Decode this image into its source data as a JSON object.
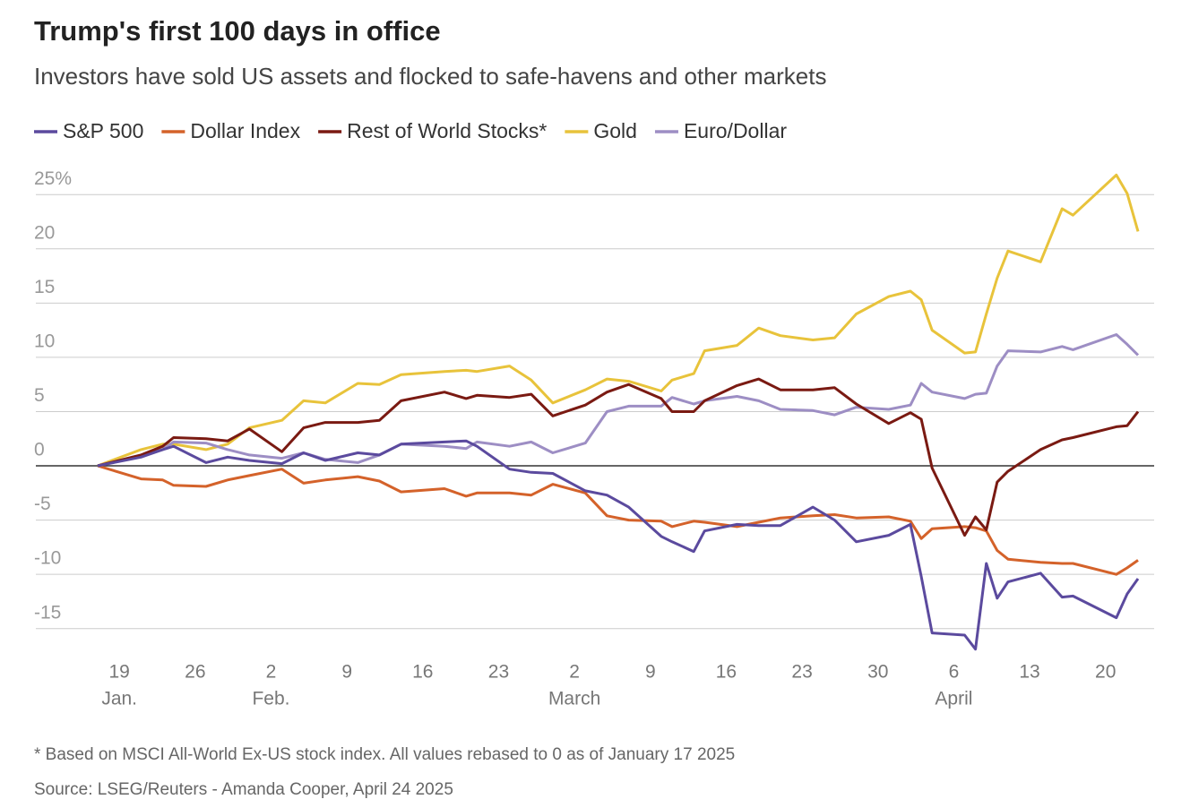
{
  "chart_data": {
    "type": "line",
    "title": "Trump's first 100 days in office",
    "subtitle": "Investors have sold US assets and flocked to safe-havens and other markets",
    "note": "* Based on MSCI All-World Ex-US stock index. All values rebased to 0 as of January 17 2025",
    "source": "Source: LSEG/Reuters - Amanda Cooper, April 24 2025",
    "x": [
      "01-17",
      "01-21",
      "01-23",
      "01-24",
      "01-27",
      "01-29",
      "01-31",
      "02-03",
      "02-05",
      "02-07",
      "02-10",
      "02-12",
      "02-14",
      "02-18",
      "02-20",
      "02-21",
      "02-24",
      "02-26",
      "02-28",
      "03-03",
      "03-05",
      "03-07",
      "03-10",
      "03-11",
      "03-13",
      "03-14",
      "03-17",
      "03-19",
      "03-21",
      "03-24",
      "03-26",
      "03-28",
      "03-31",
      "04-02",
      "04-03",
      "04-04",
      "04-07",
      "04-08",
      "04-09",
      "04-10",
      "04-11",
      "04-14",
      "04-16",
      "04-17",
      "04-21",
      "04-22",
      "04-23"
    ],
    "xlim": [
      "01-17",
      "04-23"
    ],
    "xticks": [
      {
        "value": "01-19",
        "label": "19"
      },
      {
        "value": "01-26",
        "label": "26"
      },
      {
        "value": "02-02",
        "label": "2"
      },
      {
        "value": "02-09",
        "label": "9"
      },
      {
        "value": "02-16",
        "label": "16"
      },
      {
        "value": "02-23",
        "label": "23"
      },
      {
        "value": "03-02",
        "label": "2"
      },
      {
        "value": "03-09",
        "label": "9"
      },
      {
        "value": "03-16",
        "label": "16"
      },
      {
        "value": "03-23",
        "label": "23"
      },
      {
        "value": "03-30",
        "label": "30"
      },
      {
        "value": "04-06",
        "label": "6"
      },
      {
        "value": "04-13",
        "label": "13"
      },
      {
        "value": "04-20",
        "label": "20"
      }
    ],
    "x_month_labels": [
      {
        "value": "01-19",
        "label": "Jan."
      },
      {
        "value": "02-02",
        "label": "Feb."
      },
      {
        "value": "03-02",
        "label": "March"
      },
      {
        "value": "04-06",
        "label": "April"
      }
    ],
    "ylim": [
      -17.5,
      27
    ],
    "yticks": [
      -15,
      -10,
      -5,
      0,
      5,
      10,
      15,
      20,
      {
        "value": 25,
        "label": "25%"
      }
    ],
    "grid": true,
    "legend": "top",
    "series": [
      {
        "name": "S&P 500",
        "color": "#5b4a9e",
        "values": [
          0,
          0.8,
          1.5,
          1.8,
          0.3,
          0.8,
          0.5,
          0.2,
          1.2,
          0.5,
          1.2,
          1.0,
          2.0,
          2.2,
          2.3,
          1.8,
          -0.3,
          -0.6,
          -0.7,
          -2.3,
          -2.7,
          -3.8,
          -6.5,
          -7.0,
          -7.9,
          -6.0,
          -5.4,
          -5.5,
          -5.5,
          -3.8,
          -5.0,
          -7.0,
          -6.4,
          -5.4,
          -10.2,
          -15.4,
          -15.6,
          -16.9,
          -9.0,
          -12.2,
          -10.7,
          -9.9,
          -12.1,
          -12.0,
          -14.0,
          -11.8,
          -10.4
        ]
      },
      {
        "name": "Dollar Index",
        "color": "#d4622a",
        "values": [
          0,
          -1.2,
          -1.3,
          -1.8,
          -1.9,
          -1.3,
          -0.9,
          -0.3,
          -1.6,
          -1.3,
          -1.0,
          -1.4,
          -2.4,
          -2.1,
          -2.8,
          -2.5,
          -2.5,
          -2.7,
          -1.7,
          -2.5,
          -4.6,
          -5.0,
          -5.1,
          -5.6,
          -5.1,
          -5.2,
          -5.6,
          -5.2,
          -4.8,
          -4.6,
          -4.5,
          -4.8,
          -4.7,
          -5.1,
          -6.7,
          -5.8,
          -5.6,
          -5.7,
          -6.0,
          -7.8,
          -8.6,
          -8.9,
          -9.0,
          -9.0,
          -10.0,
          -9.4,
          -8.7
        ]
      },
      {
        "name": "Rest of World Stocks*",
        "color": "#7a1a12",
        "values": [
          0,
          1.0,
          1.8,
          2.6,
          2.5,
          2.3,
          3.4,
          1.3,
          3.5,
          4.0,
          4.0,
          4.2,
          6.0,
          6.8,
          6.2,
          6.5,
          6.3,
          6.6,
          4.6,
          5.6,
          6.8,
          7.5,
          6.2,
          5.0,
          5.0,
          6.0,
          7.4,
          8.0,
          7.0,
          7.0,
          7.2,
          5.7,
          3.9,
          4.9,
          4.3,
          -0.2,
          -6.4,
          -4.7,
          -5.9,
          -1.5,
          -0.5,
          1.5,
          2.4,
          2.6,
          3.6,
          3.7,
          5.0
        ]
      },
      {
        "name": "Gold",
        "color": "#e8c33b",
        "values": [
          0,
          1.5,
          2.0,
          2.0,
          1.5,
          2.0,
          3.5,
          4.2,
          6.0,
          5.8,
          7.6,
          7.5,
          8.4,
          8.7,
          8.8,
          8.7,
          9.2,
          7.9,
          5.8,
          7.0,
          8.0,
          7.8,
          6.9,
          7.9,
          8.5,
          10.6,
          11.1,
          12.7,
          12.0,
          11.6,
          11.8,
          14.0,
          15.6,
          16.1,
          15.3,
          12.5,
          10.4,
          10.5,
          14.0,
          17.3,
          19.8,
          18.8,
          23.7,
          23.1,
          26.8,
          25.1,
          21.6
        ]
      },
      {
        "name": "Euro/Dollar",
        "color": "#9d8ec4",
        "values": [
          0,
          1.0,
          1.5,
          2.2,
          2.1,
          1.5,
          1.0,
          0.7,
          1.2,
          0.6,
          0.3,
          1.0,
          2.0,
          1.8,
          1.6,
          2.2,
          1.8,
          2.2,
          1.2,
          2.1,
          5.0,
          5.5,
          5.5,
          6.3,
          5.7,
          6.0,
          6.4,
          6.0,
          5.2,
          5.1,
          4.7,
          5.4,
          5.2,
          5.6,
          7.6,
          6.8,
          6.2,
          6.6,
          6.7,
          9.2,
          10.6,
          10.5,
          11.0,
          10.7,
          12.1,
          11.2,
          10.2
        ]
      }
    ]
  }
}
